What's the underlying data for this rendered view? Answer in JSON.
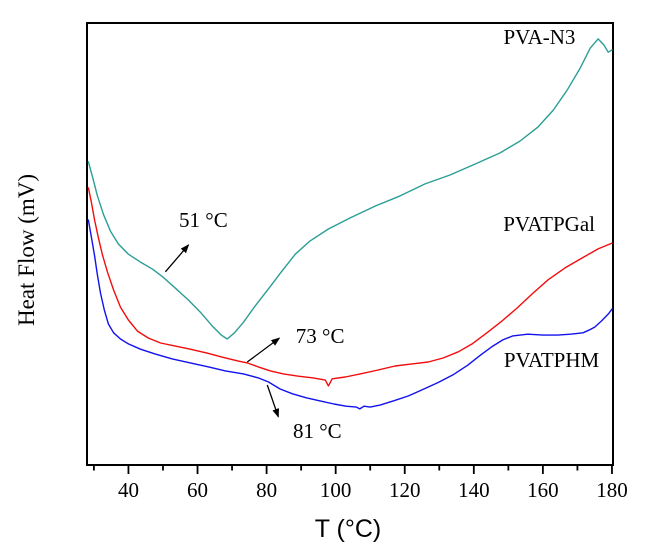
{
  "figure": {
    "background": "#ffffff",
    "text_color": "#000000"
  },
  "chart_data": {
    "type": "line",
    "title": "",
    "xlabel": "T (°C)",
    "ylabel": "Heat Flow (mV)",
    "xlim": [
      28,
      180.3
    ],
    "ylim": [
      0,
      1
    ],
    "x_major_ticks": [
      40,
      60,
      80,
      100,
      120,
      140,
      160,
      180
    ],
    "x_tick_labels": [
      "40",
      "60",
      "80",
      "100",
      "120",
      "140",
      "160",
      "180"
    ],
    "x_minor_ticks": [
      30,
      50,
      70,
      90,
      110,
      130,
      150,
      170
    ],
    "y_ticks": [],
    "grid": false,
    "frame": true,
    "axis_color": "#000000",
    "legend_position": "inline-curve-labels",
    "series": [
      {
        "name": "PVA-N3",
        "color": "#2b9e96",
        "label_pos": [
          159,
          0.968
        ],
        "points": [
          [
            28.4,
            0.686
          ],
          [
            29.6,
            0.652
          ],
          [
            31,
            0.609
          ],
          [
            32.8,
            0.566
          ],
          [
            34.8,
            0.529
          ],
          [
            37.1,
            0.5
          ],
          [
            40,
            0.477
          ],
          [
            43.5,
            0.459
          ],
          [
            47,
            0.443
          ],
          [
            50,
            0.425
          ],
          [
            53.6,
            0.4
          ],
          [
            57.4,
            0.373
          ],
          [
            60.8,
            0.346
          ],
          [
            64.3,
            0.314
          ],
          [
            66.9,
            0.294
          ],
          [
            68.6,
            0.285
          ],
          [
            70.7,
            0.299
          ],
          [
            73.3,
            0.323
          ],
          [
            76.7,
            0.36
          ],
          [
            80.5,
            0.398
          ],
          [
            84.3,
            0.437
          ],
          [
            88.3,
            0.477
          ],
          [
            92.6,
            0.507
          ],
          [
            97.9,
            0.534
          ],
          [
            104.2,
            0.559
          ],
          [
            111.5,
            0.586
          ],
          [
            118.7,
            0.609
          ],
          [
            125.9,
            0.636
          ],
          [
            133.1,
            0.656
          ],
          [
            140.4,
            0.681
          ],
          [
            147.6,
            0.706
          ],
          [
            153.4,
            0.733
          ],
          [
            158.6,
            0.765
          ],
          [
            163,
            0.803
          ],
          [
            167,
            0.848
          ],
          [
            170.8,
            0.898
          ],
          [
            173.7,
            0.943
          ],
          [
            176,
            0.964
          ],
          [
            177.7,
            0.95
          ],
          [
            178.9,
            0.934
          ],
          [
            180,
            0.939
          ]
        ]
      },
      {
        "name": "PVATPGal",
        "color": "#f20d0d",
        "label_pos": [
          161.8,
          0.545
        ],
        "points": [
          [
            28.4,
            0.627
          ],
          [
            29.3,
            0.593
          ],
          [
            30.2,
            0.554
          ],
          [
            31.3,
            0.514
          ],
          [
            32.5,
            0.475
          ],
          [
            33.9,
            0.437
          ],
          [
            35.7,
            0.396
          ],
          [
            37.7,
            0.357
          ],
          [
            40,
            0.328
          ],
          [
            42.6,
            0.303
          ],
          [
            45.8,
            0.287
          ],
          [
            49.3,
            0.276
          ],
          [
            53.6,
            0.269
          ],
          [
            57.9,
            0.262
          ],
          [
            62.9,
            0.253
          ],
          [
            67.2,
            0.244
          ],
          [
            71.8,
            0.235
          ],
          [
            74.4,
            0.231
          ],
          [
            77.6,
            0.222
          ],
          [
            81.1,
            0.213
          ],
          [
            84.9,
            0.206
          ],
          [
            89.2,
            0.201
          ],
          [
            93.5,
            0.197
          ],
          [
            97,
            0.192
          ],
          [
            97.9,
            0.179
          ],
          [
            99,
            0.195
          ],
          [
            102.8,
            0.199
          ],
          [
            107.1,
            0.206
          ],
          [
            112.3,
            0.215
          ],
          [
            117.2,
            0.224
          ],
          [
            122.4,
            0.229
          ],
          [
            126.8,
            0.233
          ],
          [
            131.1,
            0.242
          ],
          [
            135.5,
            0.256
          ],
          [
            139.5,
            0.274
          ],
          [
            143.8,
            0.299
          ],
          [
            148.2,
            0.326
          ],
          [
            152.5,
            0.355
          ],
          [
            156.9,
            0.387
          ],
          [
            161.5,
            0.419
          ],
          [
            166.4,
            0.446
          ],
          [
            171.3,
            0.468
          ],
          [
            176,
            0.489
          ],
          [
            180,
            0.502
          ]
        ]
      },
      {
        "name": "PVATPHM",
        "color": "#1212ee",
        "label_pos": [
          162.5,
          0.238
        ],
        "points": [
          [
            28.4,
            0.554
          ],
          [
            29.3,
            0.514
          ],
          [
            30.2,
            0.473
          ],
          [
            31,
            0.43
          ],
          [
            31.9,
            0.389
          ],
          [
            33,
            0.351
          ],
          [
            34.2,
            0.319
          ],
          [
            35.7,
            0.299
          ],
          [
            37.7,
            0.285
          ],
          [
            40,
            0.274
          ],
          [
            43.5,
            0.262
          ],
          [
            47.8,
            0.251
          ],
          [
            52.7,
            0.24
          ],
          [
            57.9,
            0.231
          ],
          [
            63.2,
            0.222
          ],
          [
            68.1,
            0.213
          ],
          [
            73.3,
            0.206
          ],
          [
            77.6,
            0.197
          ],
          [
            80.5,
            0.188
          ],
          [
            83.9,
            0.172
          ],
          [
            87.5,
            0.161
          ],
          [
            91.5,
            0.152
          ],
          [
            95.5,
            0.145
          ],
          [
            99.5,
            0.138
          ],
          [
            103,
            0.133
          ],
          [
            106,
            0.131
          ],
          [
            107,
            0.127
          ],
          [
            108.2,
            0.133
          ],
          [
            110,
            0.131
          ],
          [
            113,
            0.136
          ],
          [
            116.7,
            0.145
          ],
          [
            121,
            0.156
          ],
          [
            125,
            0.17
          ],
          [
            129.5,
            0.186
          ],
          [
            134,
            0.204
          ],
          [
            138.3,
            0.226
          ],
          [
            142,
            0.249
          ],
          [
            145.5,
            0.269
          ],
          [
            148.4,
            0.283
          ],
          [
            151.3,
            0.292
          ],
          [
            155.6,
            0.296
          ],
          [
            160,
            0.294
          ],
          [
            164.3,
            0.294
          ],
          [
            168,
            0.296
          ],
          [
            171.6,
            0.299
          ],
          [
            173.3,
            0.305
          ],
          [
            175,
            0.312
          ],
          [
            177,
            0.326
          ],
          [
            179,
            0.342
          ],
          [
            180,
            0.353
          ]
        ]
      }
    ],
    "annotations": [
      {
        "text": "51 °C",
        "text_pos": [
          61.7,
          0.554
        ],
        "arrow_from": [
          50.7,
          0.437
        ],
        "arrow_to": [
          57.4,
          0.498
        ]
      },
      {
        "text": "73 °C",
        "text_pos": [
          95.5,
          0.292
        ],
        "arrow_from": [
          74.4,
          0.233
        ],
        "arrow_to": [
          83.7,
          0.287
        ]
      },
      {
        "text": "81 °C",
        "text_pos": [
          94.7,
          0.077
        ],
        "arrow_from": [
          80.2,
          0.181
        ],
        "arrow_to": [
          83.4,
          0.109
        ]
      }
    ]
  }
}
